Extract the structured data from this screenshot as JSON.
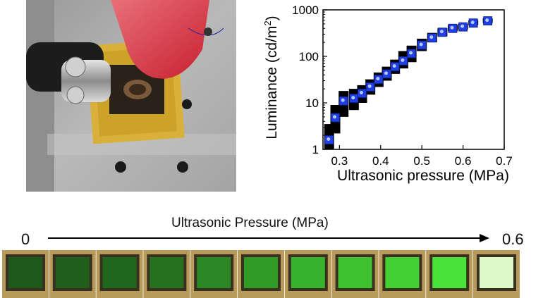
{
  "chart_data": {
    "type": "scatter",
    "xlabel": "Ultrasonic pressure (MPa)",
    "ylabel": "Luminance (cd/m²)",
    "ylabel_main": "Luminance (cd/m",
    "ylabel_sup": "2",
    "ylabel_tail": ")",
    "xlim": [
      0.26,
      0.7
    ],
    "ylim": [
      1,
      1000
    ],
    "yscale": "log",
    "xticks": [
      0.3,
      0.4,
      0.5,
      0.6,
      0.7
    ],
    "xtick_labels": [
      "0.3",
      "0.4",
      "0.5",
      "0.6",
      "0.7"
    ],
    "yticks": [
      1,
      10,
      100,
      1000
    ],
    "ytick_labels": [
      "1",
      "10",
      "100",
      "1000"
    ],
    "grid": false,
    "legend": "none",
    "marker_color": "#1f3fe0",
    "error_color": "#000000",
    "x": [
      0.275,
      0.29,
      0.31,
      0.335,
      0.355,
      0.375,
      0.395,
      0.415,
      0.435,
      0.455,
      0.475,
      0.5,
      0.525,
      0.55,
      0.575,
      0.6,
      0.625,
      0.66
    ],
    "y": [
      1.6,
      4.8,
      11,
      12.5,
      16,
      22,
      32,
      42,
      60,
      80,
      115,
      175,
      250,
      330,
      400,
      430,
      520,
      580
    ],
    "err_low": [
      1.0,
      2.2,
      5,
      7,
      10,
      15,
      22,
      30,
      42,
      55,
      75,
      130,
      200,
      270,
      350,
      380,
      470,
      520
    ],
    "err_high": [
      3.5,
      9,
      18,
      20,
      24,
      32,
      45,
      60,
      85,
      130,
      170,
      240,
      320,
      400,
      470,
      500,
      600,
      660
    ]
  },
  "sequence": {
    "label": "Ultrasonic Pressure (MPa)",
    "start": "0",
    "end": "0.6",
    "frames": [
      {
        "brightness": 0.15
      },
      {
        "brightness": 0.18
      },
      {
        "brightness": 0.22
      },
      {
        "brightness": 0.28
      },
      {
        "brightness": 0.4
      },
      {
        "brightness": 0.5
      },
      {
        "brightness": 0.62
      },
      {
        "brightness": 0.7
      },
      {
        "brightness": 0.78
      },
      {
        "brightness": 0.88
      },
      {
        "brightness": 1.0
      }
    ]
  },
  "photo": {
    "description_icon": "ultrasonic-device-photo"
  }
}
